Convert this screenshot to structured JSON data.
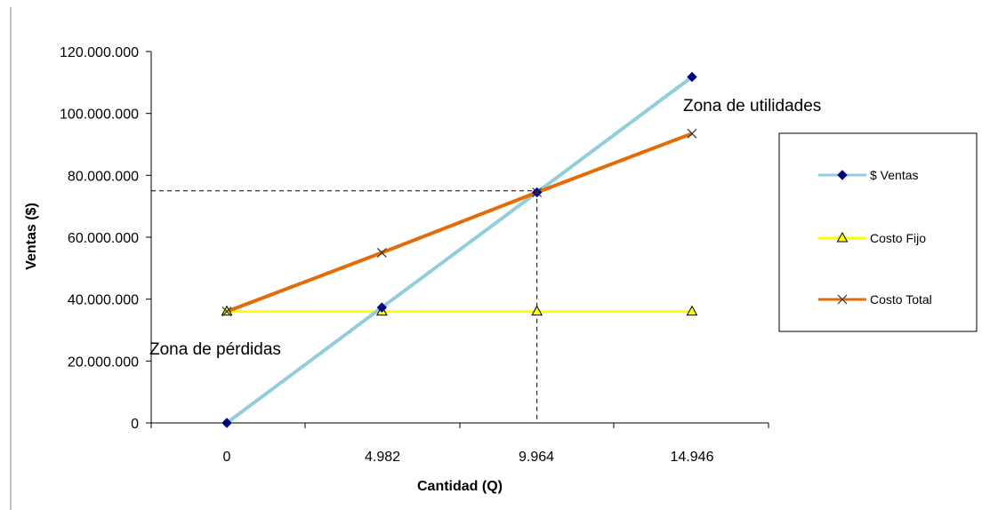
{
  "chart_data": {
    "type": "line",
    "title": "",
    "xlabel": "Cantidad (Q)",
    "ylabel": "Ventas ($)",
    "categories": [
      "0",
      "4.982",
      "9.964",
      "14.946"
    ],
    "x": [
      0,
      4982,
      9964,
      14946
    ],
    "ylim": [
      0,
      120000000
    ],
    "yticks": [
      "0",
      "20.000.000",
      "40.000.000",
      "60.000.000",
      "80.000.000",
      "100.000.000",
      "120.000.000"
    ],
    "grid": false,
    "legend_position": "right",
    "series": [
      {
        "name": "$ Ventas",
        "values": [
          0,
          37300000,
          74500000,
          111800000
        ],
        "color": "#92CDDC",
        "marker": "diamond",
        "marker_color": "#000080"
      },
      {
        "name": "Costo Fijo",
        "values": [
          36000000,
          36000000,
          36000000,
          36000000
        ],
        "color": "#FFFF00",
        "marker": "triangle",
        "marker_color": "#808000"
      },
      {
        "name": "Costo Total",
        "values": [
          36000000,
          55000000,
          74500000,
          93500000
        ],
        "color": "#E36C09",
        "marker": "x",
        "marker_color": "#333333"
      }
    ],
    "annotations": [
      {
        "text": "Zona de utilidades"
      },
      {
        "text": "Zona de pérdidas"
      }
    ],
    "break_even": {
      "x": 9964,
      "y": 75000000
    }
  }
}
